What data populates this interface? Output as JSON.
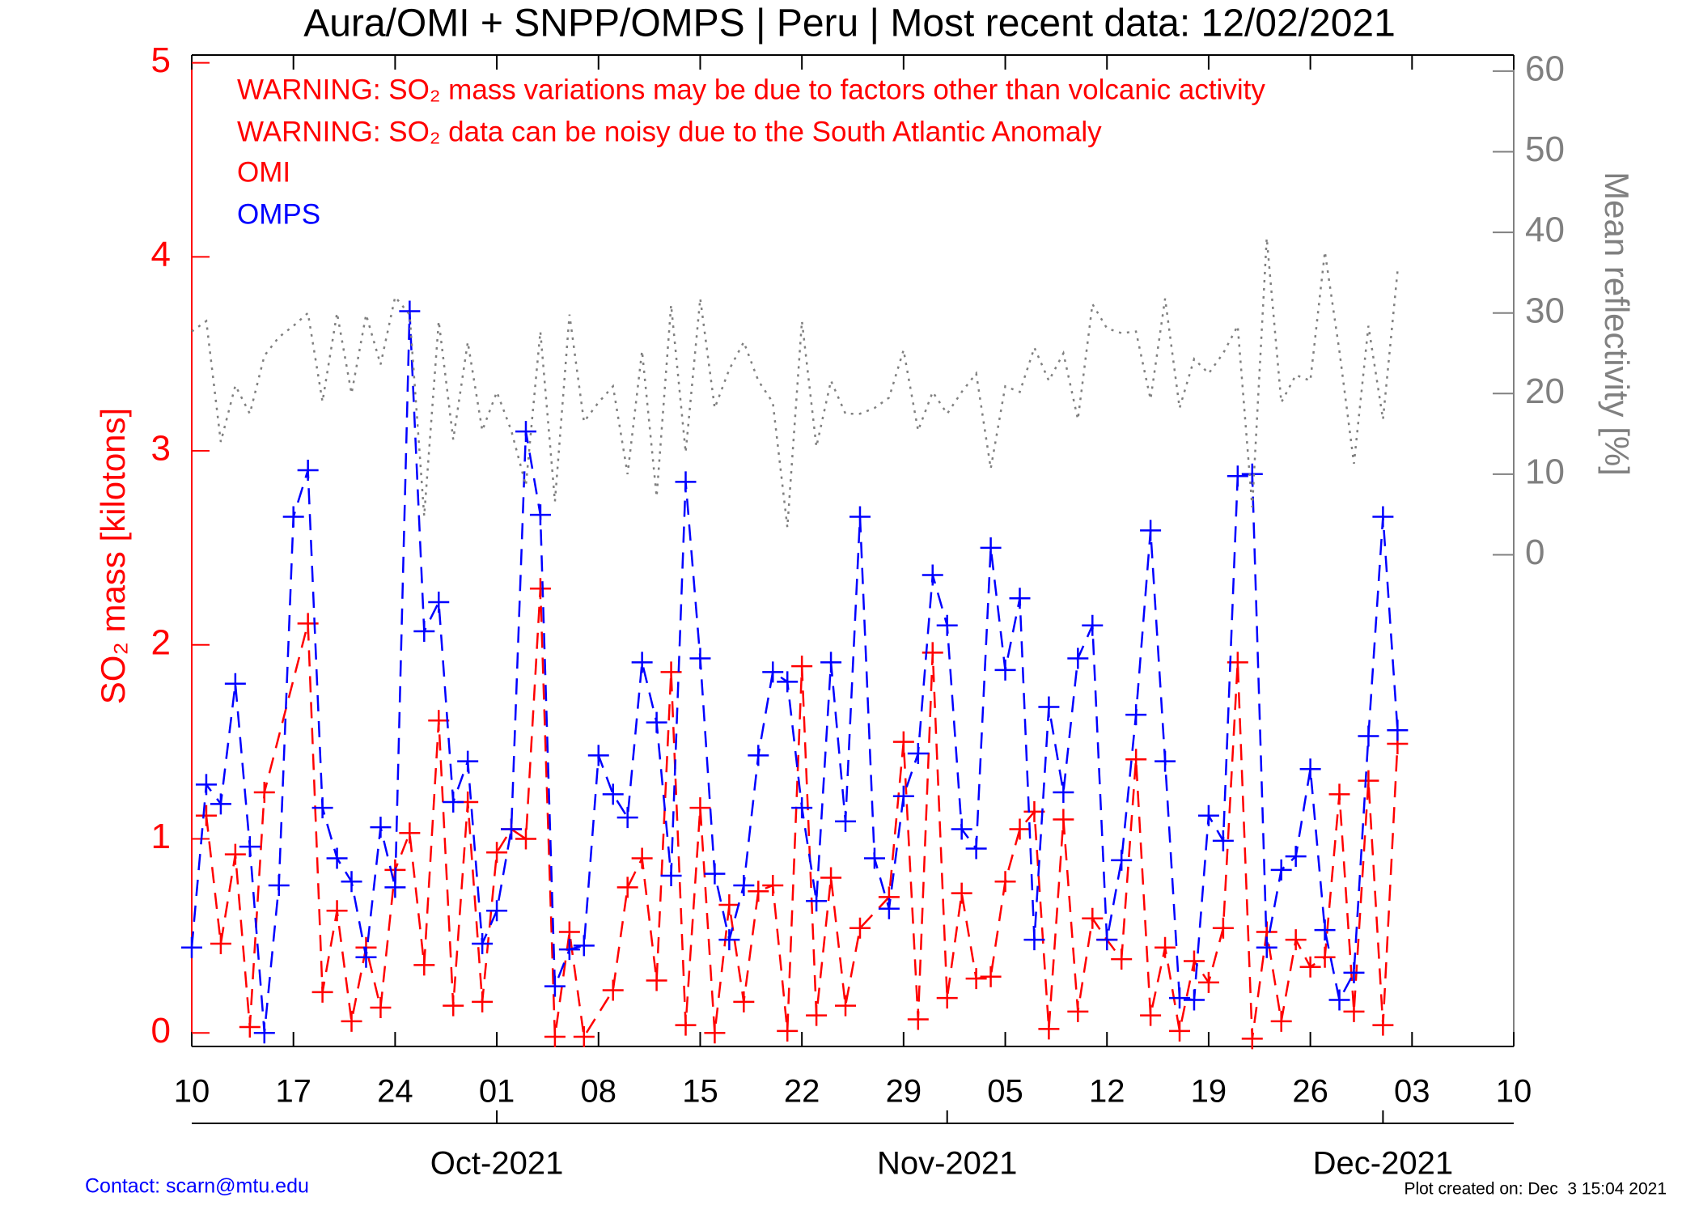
{
  "chart_data": {
    "type": "line",
    "title": "Aura/OMI + SNPP/OMPS | Peru | Most recent data: 12/02/2021",
    "annotations": [
      "WARNING: SO₂ mass variations may be due to factors other than volcanic activity",
      "WARNING: SO₂ data can be noisy due to the South Atlantic Anomaly"
    ],
    "ylabel": "SO₂ mass [kilotons]",
    "y2label": "Mean reflectivity [%]",
    "footer_left": "Contact: scarn@mtu.edu",
    "footer_right": "Plot created on: Dec  3 15:04 2021",
    "legend": "upper left",
    "xlim": [
      "2021-09-10",
      "2021-12-10"
    ],
    "xticks": [
      {
        "value": "2021-09-10",
        "label": "10"
      },
      {
        "value": "2021-09-17",
        "label": "17"
      },
      {
        "value": "2021-09-24",
        "label": "24"
      },
      {
        "value": "2021-10-01",
        "label": "01"
      },
      {
        "value": "2021-10-08",
        "label": "08"
      },
      {
        "value": "2021-10-15",
        "label": "15"
      },
      {
        "value": "2021-10-22",
        "label": "22"
      },
      {
        "value": "2021-10-29",
        "label": "29"
      },
      {
        "value": "2021-11-05",
        "label": "05"
      },
      {
        "value": "2021-11-12",
        "label": "12"
      },
      {
        "value": "2021-11-19",
        "label": "19"
      },
      {
        "value": "2021-11-26",
        "label": "26"
      },
      {
        "value": "2021-12-03",
        "label": "03"
      },
      {
        "value": "2021-12-10",
        "label": "10"
      }
    ],
    "month_ticks": [
      {
        "value": "2021-10-01",
        "label": "Oct-2021"
      },
      {
        "value": "2021-11-01",
        "label": "Nov-2021"
      },
      {
        "value": "2021-12-01",
        "label": "Dec-2021"
      }
    ],
    "ylim": [
      -0.07,
      5.04
    ],
    "yticks": [
      0,
      1,
      2,
      3,
      4,
      5
    ],
    "y2lim": [
      -61,
      62
    ],
    "y2ticks": [
      0,
      10,
      20,
      30,
      40,
      50,
      60
    ],
    "grid": false,
    "x": [
      "2021-09-10",
      "2021-09-11",
      "2021-09-12",
      "2021-09-13",
      "2021-09-14",
      "2021-09-15",
      "2021-09-16",
      "2021-09-17",
      "2021-09-18",
      "2021-09-19",
      "2021-09-20",
      "2021-09-21",
      "2021-09-22",
      "2021-09-23",
      "2021-09-24",
      "2021-09-25",
      "2021-09-26",
      "2021-09-27",
      "2021-09-28",
      "2021-09-29",
      "2021-09-30",
      "2021-10-01",
      "2021-10-02",
      "2021-10-03",
      "2021-10-04",
      "2021-10-05",
      "2021-10-06",
      "2021-10-07",
      "2021-10-08",
      "2021-10-09",
      "2021-10-10",
      "2021-10-11",
      "2021-10-12",
      "2021-10-13",
      "2021-10-14",
      "2021-10-15",
      "2021-10-16",
      "2021-10-17",
      "2021-10-18",
      "2021-10-19",
      "2021-10-20",
      "2021-10-21",
      "2021-10-22",
      "2021-10-23",
      "2021-10-24",
      "2021-10-25",
      "2021-10-26",
      "2021-10-27",
      "2021-10-28",
      "2021-10-29",
      "2021-10-30",
      "2021-10-31",
      "2021-11-01",
      "2021-11-02",
      "2021-11-03",
      "2021-11-04",
      "2021-11-05",
      "2021-11-06",
      "2021-11-07",
      "2021-11-08",
      "2021-11-09",
      "2021-11-10",
      "2021-11-11",
      "2021-11-12",
      "2021-11-13",
      "2021-11-14",
      "2021-11-15",
      "2021-11-16",
      "2021-11-17",
      "2021-11-18",
      "2021-11-19",
      "2021-11-20",
      "2021-11-21",
      "2021-11-22",
      "2021-11-23",
      "2021-11-24",
      "2021-11-25",
      "2021-11-26",
      "2021-11-27",
      "2021-11-28",
      "2021-11-29",
      "2021-11-30",
      "2021-12-01",
      "2021-12-02"
    ],
    "series": [
      {
        "name": "OMI",
        "color": "#ff0000",
        "marker": "+",
        "style": "dashed",
        "x": [
          "2021-09-11",
          "2021-09-12",
          "2021-09-13",
          "2021-09-14",
          "2021-09-15",
          "2021-09-18",
          "2021-09-19",
          "2021-09-20",
          "2021-09-21",
          "2021-09-22",
          "2021-09-23",
          "2021-09-24",
          "2021-09-25",
          "2021-09-26",
          "2021-09-27",
          "2021-09-28",
          "2021-09-29",
          "2021-09-30",
          "2021-10-01",
          "2021-10-02",
          "2021-10-03",
          "2021-10-04",
          "2021-10-05",
          "2021-10-06",
          "2021-10-07",
          "2021-10-09",
          "2021-10-10",
          "2021-10-11",
          "2021-10-12",
          "2021-10-13",
          "2021-10-14",
          "2021-10-15",
          "2021-10-16",
          "2021-10-17",
          "2021-10-18",
          "2021-10-19",
          "2021-10-20",
          "2021-10-21",
          "2021-10-22",
          "2021-10-23",
          "2021-10-24",
          "2021-10-25",
          "2021-10-26",
          "2021-10-28",
          "2021-10-29",
          "2021-10-30",
          "2021-10-31",
          "2021-11-01",
          "2021-11-02",
          "2021-11-03",
          "2021-11-04",
          "2021-11-05",
          "2021-11-06",
          "2021-11-07",
          "2021-11-08",
          "2021-11-09",
          "2021-11-10",
          "2021-11-11",
          "2021-11-12",
          "2021-11-13",
          "2021-11-14",
          "2021-11-15",
          "2021-11-16",
          "2021-11-17",
          "2021-11-18",
          "2021-11-19",
          "2021-11-20",
          "2021-11-21",
          "2021-11-22",
          "2021-11-23",
          "2021-11-24",
          "2021-11-25",
          "2021-11-26",
          "2021-11-27",
          "2021-11-28",
          "2021-11-29",
          "2021-11-30",
          "2021-12-01",
          "2021-12-02"
        ],
        "values": [
          1.12,
          0.46,
          0.92,
          0.03,
          1.24,
          2.11,
          0.21,
          0.63,
          0.06,
          0.44,
          0.13,
          0.84,
          1.03,
          0.35,
          1.61,
          0.14,
          1.19,
          0.16,
          0.93,
          1.05,
          1.0,
          2.29,
          -0.02,
          0.52,
          -0.02,
          0.22,
          0.75,
          0.9,
          0.27,
          1.86,
          0.04,
          1.16,
          0.0,
          0.66,
          0.16,
          0.73,
          0.76,
          0.01,
          1.89,
          0.09,
          0.8,
          0.14,
          0.54,
          0.7,
          1.5,
          0.07,
          1.96,
          0.18,
          0.72,
          0.28,
          0.29,
          0.78,
          1.05,
          1.14,
          0.02,
          1.1,
          0.11,
          0.59,
          0.48,
          0.38,
          1.41,
          0.09,
          0.44,
          0.01,
          0.37,
          0.26,
          0.54,
          1.91,
          -0.03,
          0.52,
          0.06,
          0.48,
          0.34,
          0.39,
          1.23,
          0.11,
          1.3,
          0.04,
          1.49
        ]
      },
      {
        "name": "OMPS",
        "color": "#0000ff",
        "marker": "+",
        "style": "dashed",
        "values": [
          0.44,
          1.28,
          1.18,
          1.8,
          0.96,
          0.0,
          0.76,
          2.66,
          2.9,
          1.16,
          0.9,
          0.78,
          0.39,
          1.06,
          0.75,
          3.72,
          2.07,
          2.22,
          1.19,
          1.4,
          0.46,
          0.63,
          1.05,
          3.1,
          2.67,
          0.24,
          0.43,
          0.45,
          1.43,
          1.23,
          1.11,
          1.91,
          1.6,
          0.81,
          2.84,
          1.93,
          0.82,
          0.48,
          0.76,
          1.43,
          1.86,
          1.81,
          1.16,
          0.68,
          1.91,
          1.09,
          2.66,
          0.9,
          0.64,
          1.22,
          1.44,
          2.36,
          2.1,
          1.05,
          0.95,
          2.5,
          1.87,
          2.24,
          0.48,
          1.68,
          1.24,
          1.93,
          2.1,
          0.48,
          0.89,
          1.64,
          2.59,
          1.4,
          0.18,
          0.17,
          1.12,
          0.99,
          2.87,
          2.88,
          0.44,
          0.84,
          0.91,
          1.36,
          0.53,
          0.17,
          0.31,
          1.53,
          2.66,
          1.56
        ]
      },
      {
        "color": "#808080",
        "style": "dotted",
        "axis": "y2",
        "values": [
          27.7,
          29,
          14,
          21,
          17.5,
          24.7,
          27,
          28.4,
          30,
          19,
          30,
          20,
          29.8,
          23.6,
          32,
          29.8,
          4.8,
          29,
          14.3,
          26.4,
          15.4,
          20.2,
          15.4,
          8.6,
          27.7,
          6.6,
          29.8,
          16.5,
          18.9,
          20.9,
          10,
          25.3,
          7.2,
          31,
          12.7,
          31.8,
          18.2,
          23,
          26.4,
          21.6,
          18.9,
          3.4,
          29,
          13.4,
          21.6,
          17.5,
          17.5,
          18.2,
          19.5,
          25.4,
          15.4,
          20.2,
          17.5,
          20.2,
          22.5,
          10.7,
          20.9,
          20.2,
          25.7,
          21.6,
          25,
          16.8,
          31.1,
          28.1,
          27.5,
          27.7,
          19.3,
          31.8,
          18.2,
          24.3,
          22.5,
          25,
          28.4,
          5.9,
          39.3,
          18.9,
          22.3,
          21.6,
          37.6,
          25.3,
          11.3,
          28.4,
          16.8,
          35.2
        ]
      }
    ]
  }
}
